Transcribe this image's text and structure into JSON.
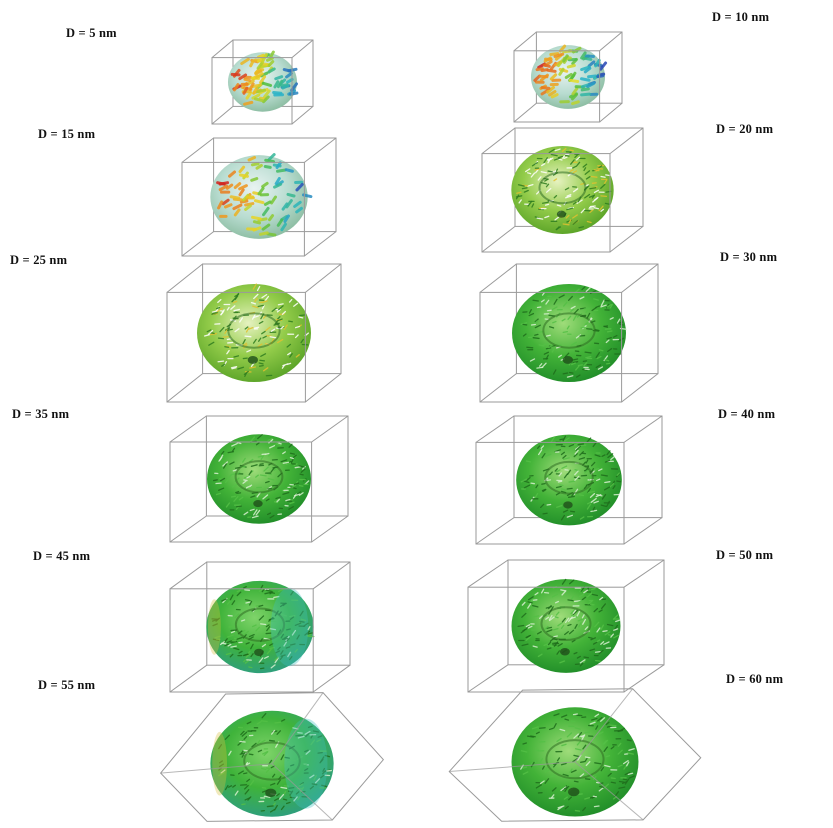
{
  "figure": {
    "panels": [
      {
        "label": "D = 5 nm",
        "diameter_nm": 5,
        "colormap": "rainbow"
      },
      {
        "label": "D = 10 nm",
        "diameter_nm": 10,
        "colormap": "rainbow"
      },
      {
        "label": "D = 15 nm",
        "diameter_nm": 15,
        "colormap": "rainbow"
      },
      {
        "label": "D = 20 nm",
        "diameter_nm": 20,
        "colormap": "green-yellow"
      },
      {
        "label": "D = 25 nm",
        "diameter_nm": 25,
        "colormap": "green-yellow"
      },
      {
        "label": "D = 30 nm",
        "diameter_nm": 30,
        "colormap": "green"
      },
      {
        "label": "D = 35 nm",
        "diameter_nm": 35,
        "colormap": "green"
      },
      {
        "label": "D = 40 nm",
        "diameter_nm": 40,
        "colormap": "green"
      },
      {
        "label": "D = 45 nm",
        "diameter_nm": 45,
        "colormap": "green-cyan"
      },
      {
        "label": "D = 50 nm",
        "diameter_nm": 50,
        "colormap": "green"
      },
      {
        "label": "D = 55 nm",
        "diameter_nm": 55,
        "colormap": "green-cyan"
      },
      {
        "label": "D = 60 nm",
        "diameter_nm": 60,
        "colormap": "green"
      }
    ]
  }
}
